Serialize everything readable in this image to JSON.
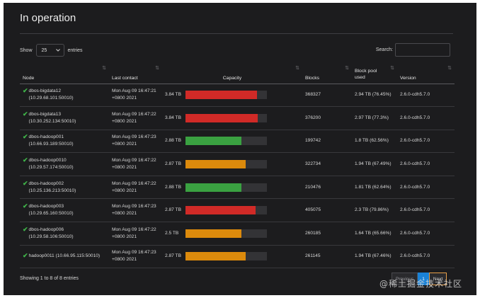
{
  "title": "In operation",
  "controls": {
    "show_label": "Show",
    "entries_value": "25",
    "entries_label": "entries",
    "search_label": "Search:"
  },
  "columns": [
    "Node",
    "Last contact",
    "Capacity",
    "Blocks",
    "Block pool used",
    "Version"
  ],
  "colors": {
    "red": "#d12a27",
    "green": "#3aa141",
    "orange": "#dc8a0c",
    "pager_active": "#1a82d6"
  },
  "rows": [
    {
      "node_line1": "dbos-bigdata12 (10.29.68.101:50010)",
      "node_line2": "",
      "contact_line1": "Mon Aug 09 16:47:21",
      "contact_line2": "+0800 2021",
      "capacity": "3.84 TB",
      "used_fraction": 0.88,
      "bar_color": "red",
      "blocks": "368327",
      "pool_used": "2.94 TB (76.45%)",
      "version": "2.6.0-cdh5.7.0"
    },
    {
      "node_line1": "dbos-bigdata13",
      "node_line2": "(10.30.252.134:50010)",
      "contact_line1": "Mon Aug 09 16:47:22",
      "contact_line2": "+0800 2021",
      "capacity": "3.84 TB",
      "used_fraction": 0.89,
      "bar_color": "red",
      "blocks": "376200",
      "pool_used": "2.97 TB (77.3%)",
      "version": "2.6.0-cdh5.7.0"
    },
    {
      "node_line1": "dbos-hadoop001",
      "node_line2": "(10.66.93.189:50010)",
      "contact_line1": "Mon Aug 09 16:47:23",
      "contact_line2": "+0800 2021",
      "capacity": "2.88 TB",
      "used_fraction": 0.69,
      "bar_color": "green",
      "blocks": "199742",
      "pool_used": "1.8 TB (62.56%)",
      "version": "2.6.0-cdh5.7.0"
    },
    {
      "node_line1": "dbos-hadoop0010",
      "node_line2": "(10.29.57.174:50010)",
      "contact_line1": "Mon Aug 09 16:47:22",
      "contact_line2": "+0800 2021",
      "capacity": "2.87 TB",
      "used_fraction": 0.74,
      "bar_color": "orange",
      "blocks": "322734",
      "pool_used": "1.94 TB (67.49%)",
      "version": "2.6.0-cdh5.7.0"
    },
    {
      "node_line1": "dbos-hadoop002",
      "node_line2": "(10.25.136.213:50010)",
      "contact_line1": "Mon Aug 09 16:47:22",
      "contact_line2": "+0800 2021",
      "capacity": "2.88 TB",
      "used_fraction": 0.69,
      "bar_color": "green",
      "blocks": "210476",
      "pool_used": "1.81 TB (62.64%)",
      "version": "2.6.0-cdh5.7.0"
    },
    {
      "node_line1": "dbos-hadoop003",
      "node_line2": "(10.29.65.160:50010)",
      "contact_line1": "Mon Aug 09 16:47:23",
      "contact_line2": "+0800 2021",
      "capacity": "2.87 TB",
      "used_fraction": 0.86,
      "bar_color": "red",
      "blocks": "405075",
      "pool_used": "2.3 TB (79.86%)",
      "version": "2.6.0-cdh5.7.0"
    },
    {
      "node_line1": "dbos-hadoop006",
      "node_line2": "(10.29.58.106:50010)",
      "contact_line1": "Mon Aug 09 16:47:22",
      "contact_line2": "+0800 2021",
      "capacity": "2.5 TB",
      "used_fraction": 0.69,
      "bar_color": "orange",
      "blocks": "260185",
      "pool_used": "1.64 TB (65.66%)",
      "version": "2.6.0-cdh5.7.0"
    },
    {
      "node_line1": "hadoop0011 (10.66.95.115:50010)",
      "node_line2": "",
      "contact_line1": "Mon Aug 09 16:47:23",
      "contact_line2": "+0800 2021",
      "capacity": "2.87 TB",
      "used_fraction": 0.74,
      "bar_color": "orange",
      "blocks": "261145",
      "pool_used": "1.94 TB (67.46%)",
      "version": "2.6.0-cdh5.7.0"
    }
  ],
  "footer": {
    "showing": "Showing 1 to 8 of 8 entries",
    "previous": "Previous",
    "page": "1",
    "next": "Next"
  },
  "watermark": "@稀土掘金技术社区"
}
